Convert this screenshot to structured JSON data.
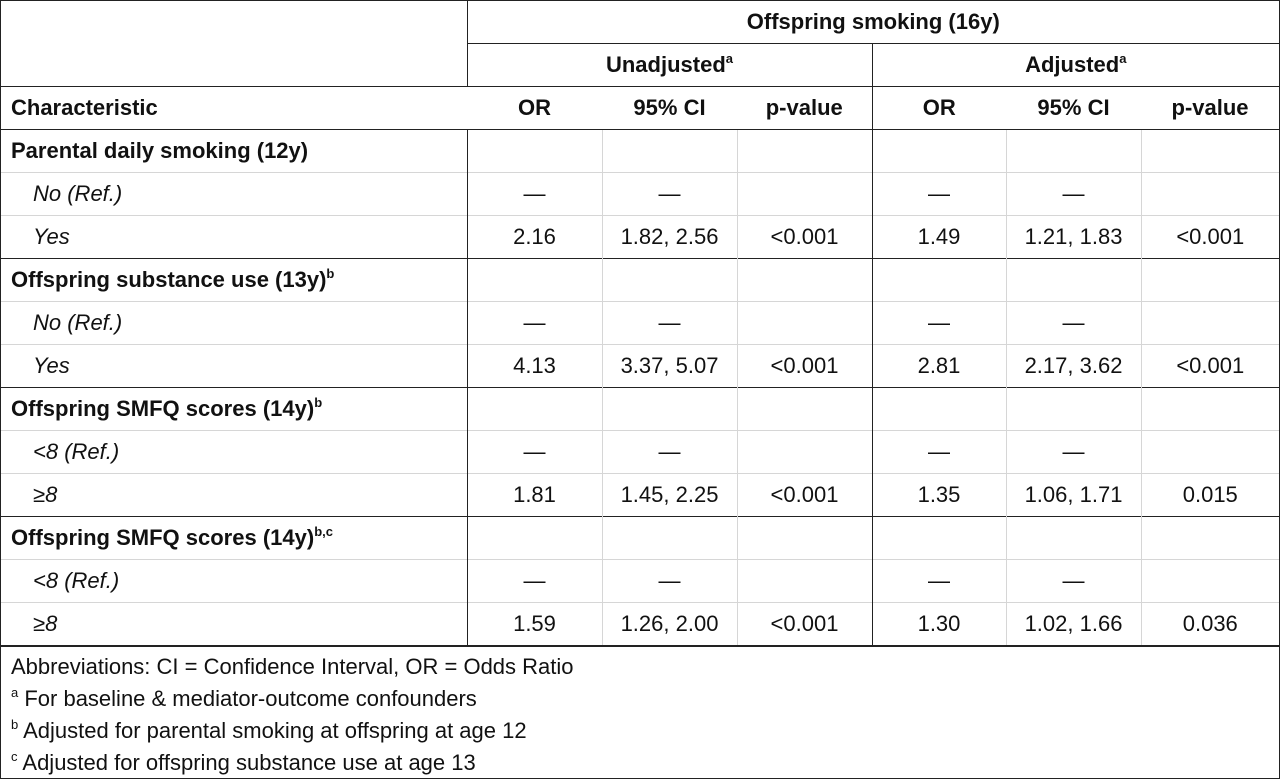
{
  "header": {
    "outcome_title": "Offspring smoking (16y)",
    "group_unadjusted": "Unadjusted",
    "group_unadjusted_sup": "a",
    "group_adjusted": "Adjusted",
    "group_adjusted_sup": "a",
    "characteristic": "Characteristic",
    "columns": [
      "OR",
      "95% CI",
      "p-value",
      "OR",
      "95% CI",
      "p-value"
    ]
  },
  "sections": [
    {
      "title": "Parental daily smoking (12y)",
      "sup": "",
      "rows": [
        {
          "label": "No (Ref.)",
          "u_or": "—",
          "u_ci": "—",
          "u_p": "",
          "a_or": "—",
          "a_ci": "—",
          "a_p": ""
        },
        {
          "label": "Yes",
          "u_or": "2.16",
          "u_ci": "1.82, 2.56",
          "u_p": "<0.001",
          "a_or": "1.49",
          "a_ci": "1.21, 1.83",
          "a_p": "<0.001"
        }
      ]
    },
    {
      "title": "Offspring substance use (13y)",
      "sup": "b",
      "rows": [
        {
          "label": "No (Ref.)",
          "u_or": "—",
          "u_ci": "—",
          "u_p": "",
          "a_or": "—",
          "a_ci": "—",
          "a_p": ""
        },
        {
          "label": "Yes",
          "u_or": "4.13",
          "u_ci": "3.37, 5.07",
          "u_p": "<0.001",
          "a_or": "2.81",
          "a_ci": "2.17, 3.62",
          "a_p": "<0.001"
        }
      ]
    },
    {
      "title": "Offspring SMFQ scores (14y)",
      "sup": "b",
      "rows": [
        {
          "label": "<8 (Ref.)",
          "u_or": "—",
          "u_ci": "—",
          "u_p": "",
          "a_or": "—",
          "a_ci": "—",
          "a_p": ""
        },
        {
          "label": "≥8",
          "u_or": "1.81",
          "u_ci": "1.45, 2.25",
          "u_p": "<0.001",
          "a_or": "1.35",
          "a_ci": "1.06, 1.71",
          "a_p": "0.015"
        }
      ]
    },
    {
      "title": "Offspring SMFQ scores (14y)",
      "sup": "b,c",
      "rows": [
        {
          "label": "<8 (Ref.)",
          "u_or": "—",
          "u_ci": "—",
          "u_p": "",
          "a_or": "—",
          "a_ci": "—",
          "a_p": ""
        },
        {
          "label": "≥8",
          "u_or": "1.59",
          "u_ci": "1.26, 2.00",
          "u_p": "<0.001",
          "a_or": "1.30",
          "a_ci": "1.02, 1.66",
          "a_p": "0.036"
        }
      ]
    }
  ],
  "footnotes": {
    "abbreviations": "Abbreviations: CI = Confidence Interval, OR = Odds Ratio",
    "a_mark": "a",
    "a_text": " For baseline & mediator-outcome confounders",
    "b_mark": "b",
    "b_text": " Adjusted for parental smoking at offspring at age 12",
    "c_mark": "c",
    "c_text": " Adjusted for offspring substance use at age 13"
  }
}
